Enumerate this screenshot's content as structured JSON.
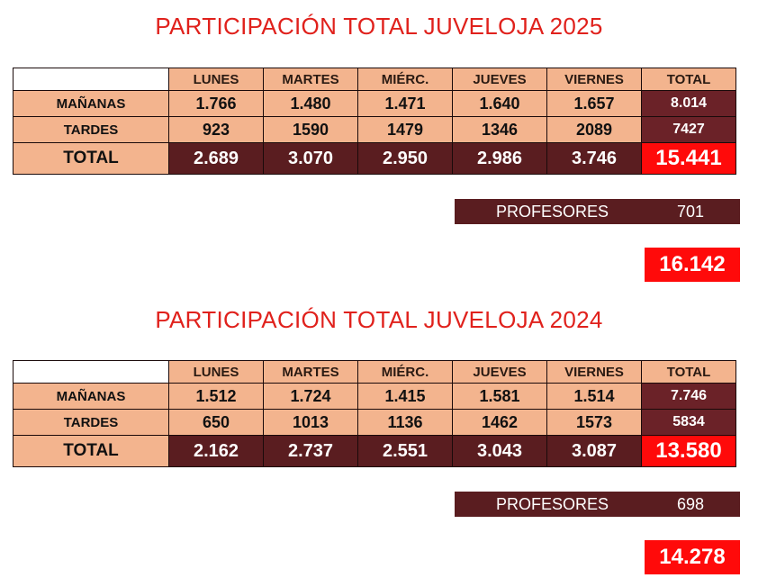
{
  "headers": [
    "LUNES",
    "MARTES",
    "MIÉRC.",
    "JUEVES",
    "VIERNES",
    "TOTAL"
  ],
  "row_labels": {
    "morning": "MAÑANAS",
    "afternoon": "TARDES",
    "total": "TOTAL"
  },
  "sections": [
    {
      "title": "PARTICIPACIÓN TOTAL JUVELOJA 2025",
      "mananas": [
        "1.766",
        "1.480",
        "1.471",
        "1.640",
        "1.657",
        "8.014"
      ],
      "tardes": [
        "923",
        "1590",
        "1479",
        "1346",
        "2089",
        "7427"
      ],
      "total": [
        "2.689",
        "3.070",
        "2.950",
        "2.986",
        "3.746",
        "15.441"
      ],
      "profesores_label": "PROFESORES",
      "profesores_value": "701",
      "grand_total": "16.142"
    },
    {
      "title": "PARTICIPACIÓN TOTAL JUVELOJA 2024",
      "mananas": [
        "1.512",
        "1.724",
        "1.415",
        "1.581",
        "1.514",
        "7.746"
      ],
      "tardes": [
        "650",
        "1013",
        "1136",
        "1462",
        "1573",
        "5834"
      ],
      "total": [
        "2.162",
        "2.737",
        "2.551",
        "3.043",
        "3.087",
        "13.580"
      ],
      "profesores_label": "PROFESORES",
      "profesores_value": "698",
      "grand_total": "14.278"
    }
  ]
}
